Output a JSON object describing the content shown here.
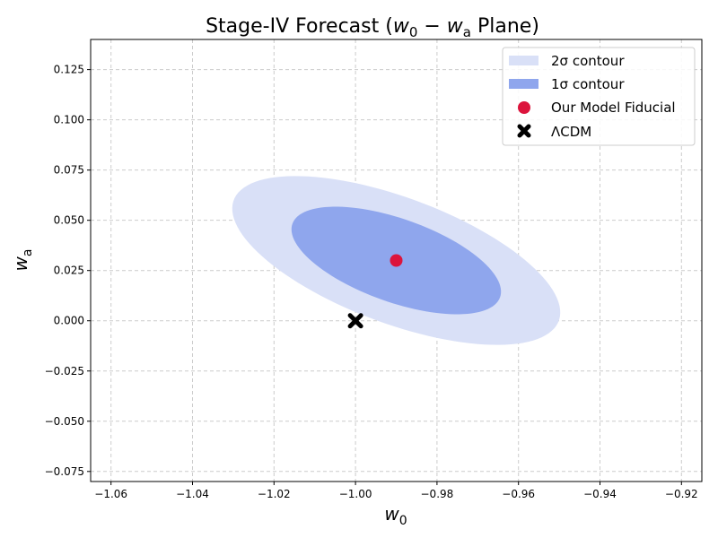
{
  "chart_data": {
    "type": "scatter",
    "title_prefix": "Stage-IV Forecast (",
    "title_math_w0": "w",
    "title_math_w0_sub": "0",
    "title_math_minus": " − ",
    "title_math_wa": "w",
    "title_math_wa_sub": "a",
    "title_suffix": " Plane)",
    "xlabel_main": "w",
    "xlabel_sub": "0",
    "ylabel_main": "w",
    "ylabel_sub": "a",
    "xlim": [
      -1.065,
      -0.915
    ],
    "ylim": [
      -0.08,
      0.14
    ],
    "xticks": [
      -1.06,
      -1.04,
      -1.02,
      -1.0,
      -0.98,
      -0.96,
      -0.94,
      -0.92
    ],
    "xtick_labels": [
      "−1.06",
      "−1.04",
      "−1.02",
      "−1.00",
      "−0.98",
      "−0.96",
      "−0.94",
      "−0.92"
    ],
    "yticks": [
      -0.075,
      -0.05,
      -0.025,
      0.0,
      0.025,
      0.05,
      0.075,
      0.1,
      0.125
    ],
    "ytick_labels": [
      "−0.075",
      "−0.050",
      "−0.025",
      "0.000",
      "0.025",
      "0.050",
      "0.075",
      "0.100",
      "0.125"
    ],
    "grid": true,
    "legend_position": "upper-right",
    "contours": [
      {
        "name": "2σ contour",
        "level": 2,
        "center": [
          -0.99,
          0.03
        ],
        "semi_major": 0.0523,
        "semi_minor": 0.0255,
        "angle_deg": 133,
        "color": "#d9e0f7"
      },
      {
        "name": "1σ contour",
        "level": 1,
        "center": [
          -0.99,
          0.03
        ],
        "semi_major": 0.033,
        "semi_minor": 0.017,
        "angle_deg": 133,
        "color": "#8fa6ed"
      }
    ],
    "points": [
      {
        "name": "Our Model Fiducial",
        "x": -0.99,
        "y": 0.03,
        "marker": "circle",
        "color": "#dc143c"
      },
      {
        "name": "ΛCDM",
        "x": -1.0,
        "y": 0.0,
        "marker": "x",
        "color": "#000000"
      }
    ],
    "legend": [
      "2σ contour",
      "1σ contour",
      "Our Model Fiducial",
      "ΛCDM"
    ]
  }
}
